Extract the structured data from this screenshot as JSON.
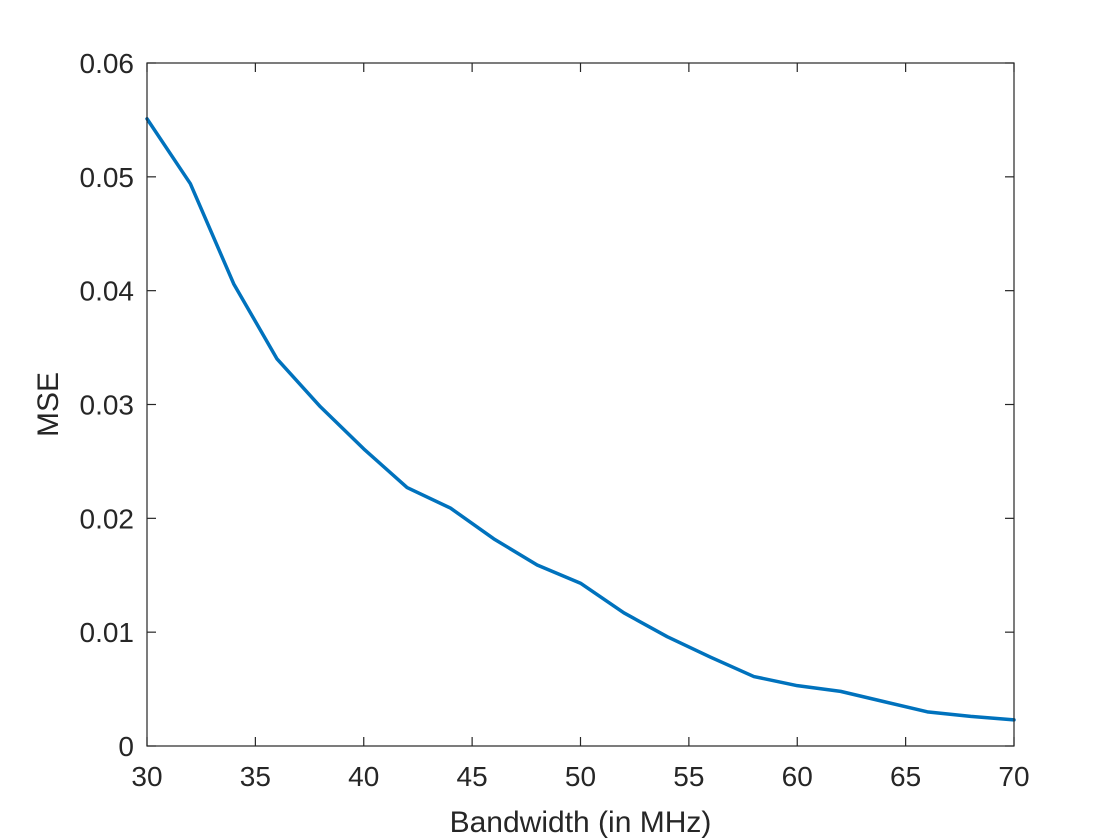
{
  "chart_data": {
    "type": "line",
    "title": "",
    "xlabel": "Bandwidth (in MHz)",
    "ylabel": "MSE",
    "xlim": [
      30,
      70
    ],
    "ylim": [
      0,
      0.06
    ],
    "xticks": [
      30,
      35,
      40,
      45,
      50,
      55,
      60,
      65,
      70
    ],
    "yticks": [
      0,
      0.01,
      0.02,
      0.03,
      0.04,
      0.05,
      0.06
    ],
    "xtick_labels": [
      "30",
      "35",
      "40",
      "45",
      "50",
      "55",
      "60",
      "65",
      "70"
    ],
    "ytick_labels": [
      "0",
      "0.01",
      "0.02",
      "0.03",
      "0.04",
      "0.05",
      "0.06"
    ],
    "grid": false,
    "legend": "none",
    "series": [
      {
        "color": "#0072BD",
        "x": [
          30,
          32,
          34,
          36,
          38,
          40,
          42,
          44,
          46,
          48,
          50,
          52,
          54,
          56,
          58,
          60,
          62,
          64,
          66,
          68,
          70
        ],
        "y": [
          0.0551,
          0.0494,
          0.0406,
          0.034,
          0.0298,
          0.0261,
          0.0227,
          0.0209,
          0.0182,
          0.0159,
          0.0143,
          0.0117,
          0.0096,
          0.0078,
          0.0061,
          0.0053,
          0.0048,
          0.0039,
          0.003,
          0.0026,
          0.0023
        ]
      }
    ]
  }
}
